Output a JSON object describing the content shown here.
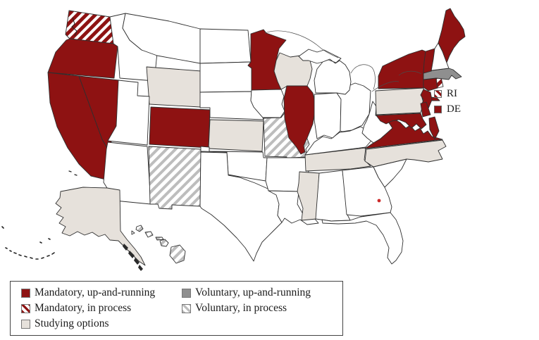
{
  "figure": {
    "type": "us-state-choropleth"
  },
  "colors": {
    "mandatory": "#8e1212",
    "studying": "#e6e1db",
    "voluntary": "#8f8f8f",
    "stripe_gray": "#bdbdbd",
    "stripe_bg": "#ffffff",
    "state_default": "#ffffff",
    "border": "#2f2f2f",
    "text": "#1c1c1c",
    "marker_dot": "#cc2a2a"
  },
  "legend": {
    "items": [
      {
        "label": "Mandatory, up-and-running",
        "category": "mandatory_running"
      },
      {
        "label": "Mandatory, in process",
        "category": "mandatory_process"
      },
      {
        "label": "Studying options",
        "category": "studying"
      },
      {
        "label": "Voluntary, up-and-running",
        "category": "voluntary_running"
      },
      {
        "label": "Voluntary, in process",
        "category": "voluntary_process"
      }
    ]
  },
  "callouts": [
    {
      "label": "RI",
      "category": "mandatory_process"
    },
    {
      "label": "DE",
      "category": "mandatory_running"
    }
  ],
  "map": {
    "marker": {
      "name": "location-dot"
    },
    "states": [
      {
        "id": "WA",
        "category": "mandatory_process"
      },
      {
        "id": "OR",
        "category": "mandatory_running"
      },
      {
        "id": "CA",
        "category": "mandatory_running"
      },
      {
        "id": "NV",
        "category": "mandatory_running"
      },
      {
        "id": "ID",
        "category": "none"
      },
      {
        "id": "MT",
        "category": "none"
      },
      {
        "id": "WY",
        "category": "studying"
      },
      {
        "id": "UT",
        "category": "none"
      },
      {
        "id": "CO",
        "category": "mandatory_running"
      },
      {
        "id": "AZ",
        "category": "none"
      },
      {
        "id": "NM",
        "category": "voluntary_process"
      },
      {
        "id": "ND",
        "category": "none"
      },
      {
        "id": "SD",
        "category": "none"
      },
      {
        "id": "NE",
        "category": "none"
      },
      {
        "id": "KS",
        "category": "studying"
      },
      {
        "id": "OK",
        "category": "none"
      },
      {
        "id": "TX",
        "category": "none"
      },
      {
        "id": "MN",
        "category": "mandatory_running"
      },
      {
        "id": "IA",
        "category": "none"
      },
      {
        "id": "MO",
        "category": "voluntary_process"
      },
      {
        "id": "AR",
        "category": "none"
      },
      {
        "id": "LA",
        "category": "none"
      },
      {
        "id": "WI",
        "category": "studying"
      },
      {
        "id": "IL",
        "category": "mandatory_running"
      },
      {
        "id": "MS",
        "category": "studying"
      },
      {
        "id": "AL",
        "category": "none"
      },
      {
        "id": "TN",
        "category": "studying"
      },
      {
        "id": "KY",
        "category": "none"
      },
      {
        "id": "IN",
        "category": "none"
      },
      {
        "id": "OH",
        "category": "none"
      },
      {
        "id": "MI",
        "category": "none"
      },
      {
        "id": "GA",
        "category": "none"
      },
      {
        "id": "FL",
        "category": "none"
      },
      {
        "id": "SC",
        "category": "none"
      },
      {
        "id": "NC",
        "category": "studying"
      },
      {
        "id": "VA",
        "category": "mandatory_running"
      },
      {
        "id": "WV",
        "category": "none"
      },
      {
        "id": "PA",
        "category": "studying"
      },
      {
        "id": "NY",
        "category": "mandatory_running"
      },
      {
        "id": "NJ",
        "category": "mandatory_running"
      },
      {
        "id": "DE",
        "category": "mandatory_running"
      },
      {
        "id": "MD",
        "category": "mandatory_running"
      },
      {
        "id": "CT",
        "category": "mandatory_running"
      },
      {
        "id": "RI",
        "category": "mandatory_process"
      },
      {
        "id": "MA",
        "category": "voluntary_running"
      },
      {
        "id": "VT",
        "category": "mandatory_running"
      },
      {
        "id": "NH",
        "category": "none"
      },
      {
        "id": "ME",
        "category": "mandatory_running"
      },
      {
        "id": "AK",
        "category": "studying"
      },
      {
        "id": "HI",
        "category": "voluntary_process"
      }
    ]
  }
}
